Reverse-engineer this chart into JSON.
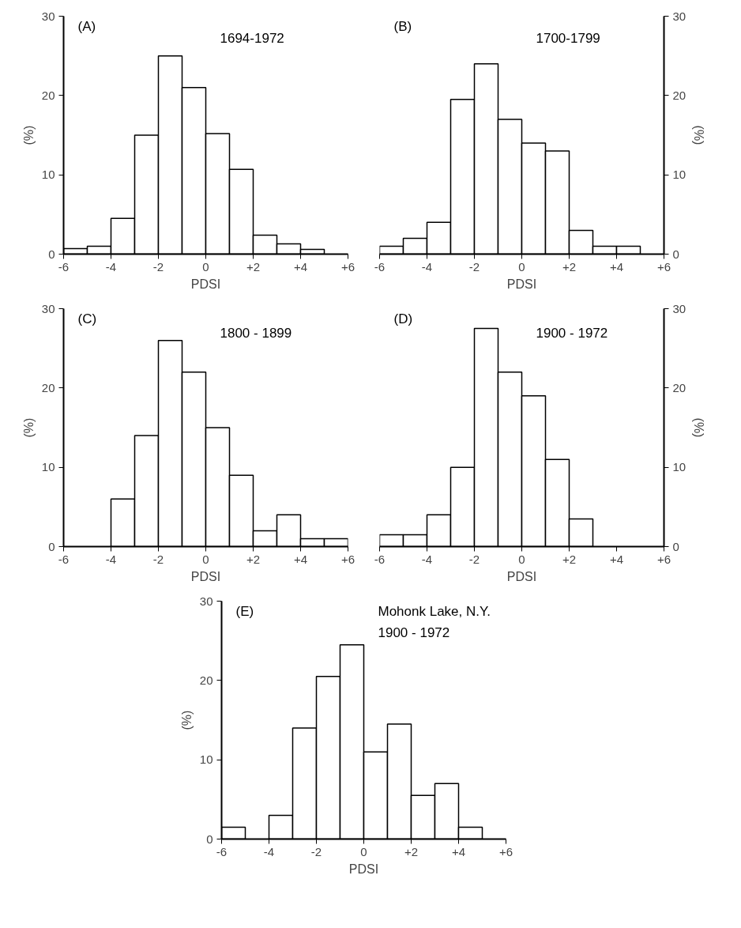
{
  "chart_data": [
    {
      "type": "histogram",
      "annotations": [
        "(A)",
        "1694-1972"
      ],
      "xlabel": "PDSI",
      "ylabel": "(%)",
      "color": "#ffffff",
      "bins": [
        -6,
        -5,
        -4,
        -3,
        -2,
        -1,
        0,
        1,
        2,
        3,
        4,
        5,
        6
      ],
      "values": [
        0.7,
        1,
        4.5,
        15,
        25,
        21,
        15.2,
        10.7,
        2.4,
        1.3,
        0.6,
        0
      ],
      "xlim": [
        -6,
        6
      ],
      "xticks": [
        -6,
        -4,
        -2,
        0,
        {
          "value": 2,
          "label": "+2"
        },
        {
          "value": 4,
          "label": "+4"
        },
        {
          "value": 6,
          "label": "+6"
        }
      ],
      "ylim": [
        0,
        30
      ],
      "yticks": [
        0,
        10,
        20,
        30
      ]
    },
    {
      "type": "histogram",
      "annotations": [
        "(B)",
        "1700-1799"
      ],
      "xlabel": "PDSI",
      "y2label": "(%)",
      "color": "#ffffff",
      "bins": [
        -6,
        -5,
        -4,
        -3,
        -2,
        -1,
        0,
        1,
        2,
        3,
        4,
        5,
        6
      ],
      "series": [
        {
          "values": [
            1,
            2,
            4,
            19.5,
            24,
            17,
            14,
            13,
            3,
            1,
            1,
            0
          ],
          "axis": "y2"
        }
      ],
      "xlim": [
        -6,
        6
      ],
      "xticks": [
        -6,
        -4,
        -2,
        0,
        {
          "value": 2,
          "label": "+2"
        },
        {
          "value": 4,
          "label": "+4"
        },
        {
          "value": 6,
          "label": "+6"
        }
      ],
      "y2lim": [
        0,
        30
      ],
      "y2ticks": [
        0,
        10,
        20,
        30
      ]
    },
    {
      "type": "histogram",
      "annotations": [
        "(C)",
        "1800 - 1899"
      ],
      "xlabel": "PDSI",
      "ylabel": "(%)",
      "color": "#ffffff",
      "bins": [
        -6,
        -5,
        -4,
        -3,
        -2,
        -1,
        0,
        1,
        2,
        3,
        4,
        5,
        6
      ],
      "values": [
        0,
        0,
        6,
        14,
        26,
        22,
        15,
        9,
        2,
        4,
        1,
        1
      ],
      "xlim": [
        -6,
        6
      ],
      "xticks": [
        -6,
        -4,
        -2,
        0,
        {
          "value": 2,
          "label": "+2"
        },
        {
          "value": 4,
          "label": "+4"
        },
        {
          "value": 6,
          "label": "+6"
        }
      ],
      "ylim": [
        0,
        30
      ],
      "yticks": [
        0,
        10,
        20,
        30
      ]
    },
    {
      "type": "histogram",
      "annotations": [
        "(D)",
        "1900 - 1972"
      ],
      "xlabel": "PDSI",
      "y2label": "(%)",
      "color": "#ffffff",
      "bins": [
        -6,
        -5,
        -4,
        -3,
        -2,
        -1,
        0,
        1,
        2,
        3,
        4,
        5,
        6
      ],
      "series": [
        {
          "values": [
            1.5,
            1.5,
            4,
            10,
            27.5,
            22,
            19,
            11,
            3.5,
            0,
            0,
            0
          ],
          "axis": "y2"
        }
      ],
      "xlim": [
        -6,
        6
      ],
      "xticks": [
        -6,
        -4,
        -2,
        0,
        {
          "value": 2,
          "label": "+2"
        },
        {
          "value": 4,
          "label": "+4"
        },
        {
          "value": 6,
          "label": "+6"
        }
      ],
      "y2lim": [
        0,
        30
      ],
      "y2ticks": [
        0,
        10,
        20,
        30
      ]
    },
    {
      "type": "histogram",
      "annotations": [
        "(E)",
        "Mohonk Lake, N.Y.",
        "1900 - 1972"
      ],
      "xlabel": "PDSI",
      "ylabel": "(%)",
      "color": "#ffffff",
      "bins": [
        -6,
        -5,
        -4,
        -3,
        -2,
        -1,
        0,
        1,
        2,
        3,
        4,
        5,
        6
      ],
      "values": [
        1.5,
        0,
        3,
        14,
        20.5,
        24.5,
        11,
        14.5,
        5.5,
        7,
        1.5,
        0
      ],
      "xlim": [
        -6,
        6
      ],
      "xticks": [
        -6,
        -4,
        -2,
        0,
        {
          "value": 2,
          "label": "+2"
        },
        {
          "value": 4,
          "label": "+4"
        },
        {
          "value": 6,
          "label": "+6"
        }
      ],
      "ylim": [
        0,
        30
      ],
      "yticks": [
        0,
        10,
        20,
        30
      ]
    }
  ]
}
